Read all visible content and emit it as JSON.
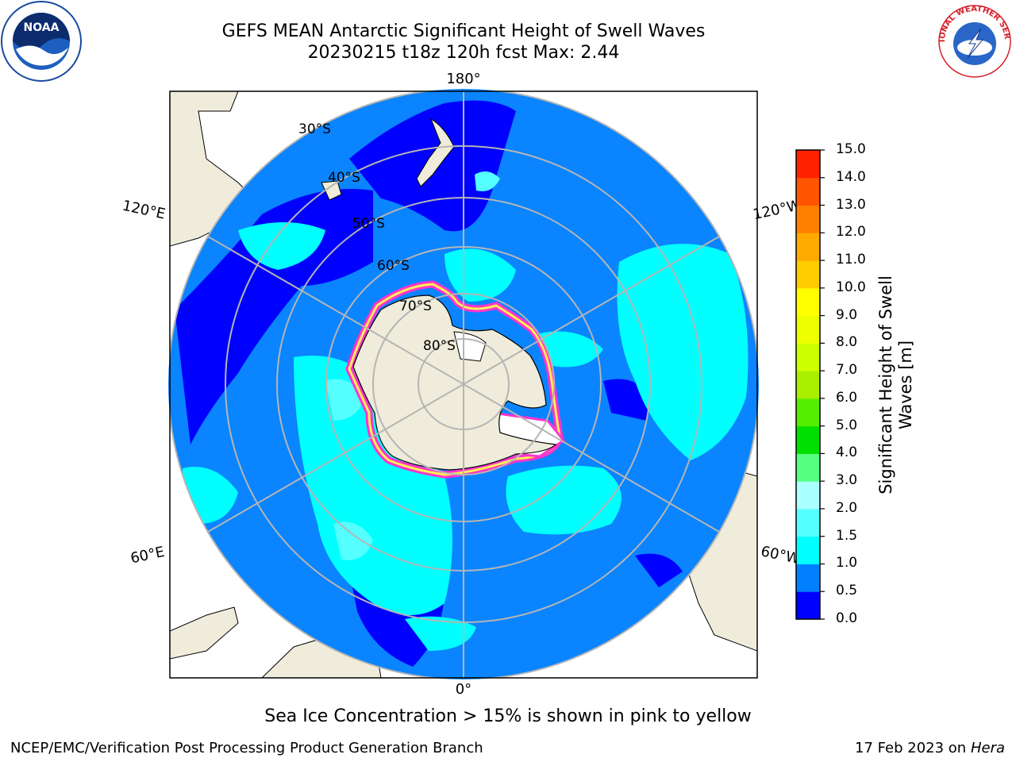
{
  "header": {
    "title_line1": "GEFS MEAN Antarctic Significant Height of Swell Waves",
    "title_line2": "20230215 t18z 120h fcst   Max: 2.44"
  },
  "logos": {
    "left": "noaa-logo",
    "right": "nws-logo",
    "noaa_text": "NOAA",
    "nws_text": "NATIONAL WEATHER SERVICE"
  },
  "map": {
    "projection": "south-polar-stereographic",
    "longitude_labels": {
      "top": "180°",
      "bottom": "0°",
      "upper_left": "120°E",
      "upper_right": "120°W",
      "lower_left": "60°E",
      "lower_right": "60°W"
    },
    "latitude_labels": [
      "30°S",
      "40°S",
      "50°S",
      "60°S",
      "70°S",
      "80°S"
    ],
    "colors": {
      "land": "#efecdb",
      "ocean_base": "#0a84ff",
      "grid": "#b5b5b5",
      "ice_pink": "#ff33cc",
      "ice_yellow": "#ffee55"
    }
  },
  "colorbar": {
    "ticks": [
      "15.0",
      "14.0",
      "13.0",
      "12.0",
      "11.0",
      "10.0",
      "9.0",
      "8.0",
      "7.0",
      "6.0",
      "5.0",
      "4.0",
      "3.0",
      "2.0",
      "1.5",
      "1.0",
      "0.5",
      "0.0"
    ],
    "colors": [
      "#0000ff",
      "#0080ff",
      "#00ffff",
      "#55ffff",
      "#aaffff",
      "#55ff80",
      "#00e000",
      "#55ee00",
      "#aaee00",
      "#ccff00",
      "#eeff00",
      "#ffff00",
      "#ffcc00",
      "#ffaa00",
      "#ff8000",
      "#ff5500",
      "#ff2200"
    ],
    "label": "Significant Height of Swell Waves [m]",
    "label_line1": "Significant Height of Swell",
    "label_line2": "Waves [m]"
  },
  "footer": {
    "note": "Sea Ice Concentration > 15% is shown in pink to yellow",
    "credit": "NCEP/EMC/Verification Post Processing Product Generation Branch",
    "date": "17 Feb 2023 on",
    "machine": "Hera"
  }
}
